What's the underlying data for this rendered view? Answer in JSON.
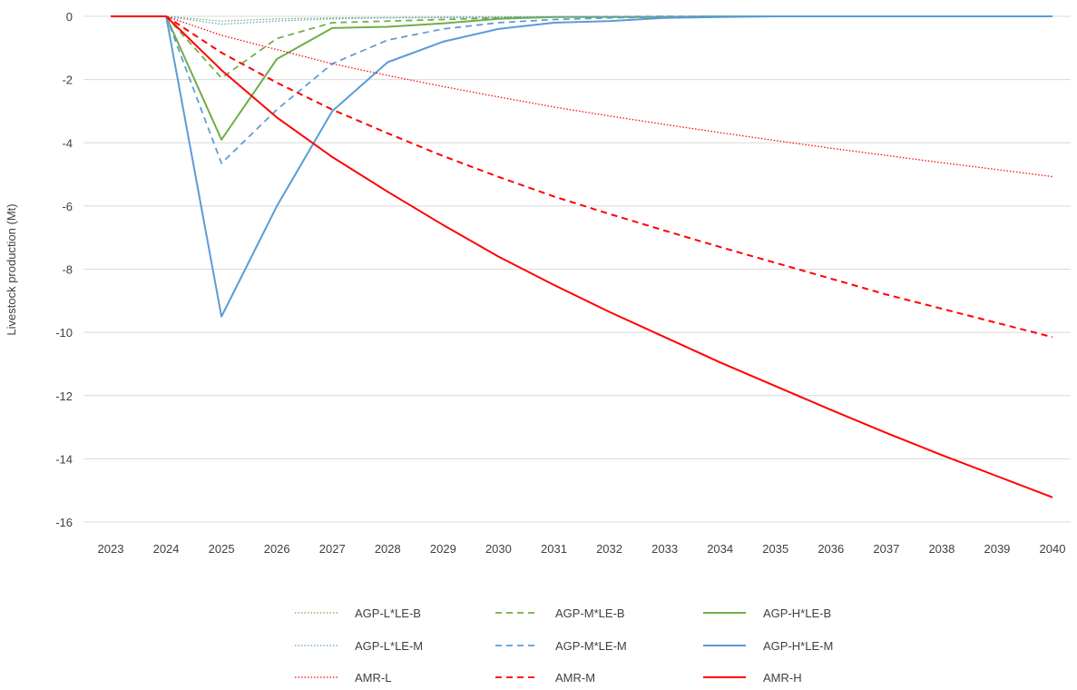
{
  "chart_data": {
    "type": "line",
    "title": "",
    "xlabel": "",
    "ylabel": "Livestock production (Mt)",
    "ylim": [
      -16,
      0
    ],
    "yticks": [
      0,
      -2,
      -4,
      -6,
      -8,
      -10,
      -12,
      -14,
      -16
    ],
    "x": [
      "2023",
      "2024",
      "2025",
      "2026",
      "2027",
      "2028",
      "2029",
      "2030",
      "2031",
      "2032",
      "2033",
      "2034",
      "2035",
      "2036",
      "2037",
      "2038",
      "2039",
      "2040"
    ],
    "grid": "horizontal",
    "legend_position": "bottom",
    "series": [
      {
        "name": "AGP-L*LE-B",
        "color": "#70AD47",
        "dash": "dotted",
        "values": [
          0,
          0,
          -0.15,
          -0.08,
          -0.05,
          -0.04,
          -0.03,
          -0.02,
          -0.01,
          -0.01,
          0,
          0,
          0,
          0,
          0,
          0,
          0,
          0
        ]
      },
      {
        "name": "AGP-M*LE-B",
        "color": "#70AD47",
        "dash": "dashed",
        "values": [
          0,
          0,
          -1.95,
          -0.7,
          -0.2,
          -0.15,
          -0.1,
          -0.05,
          -0.02,
          -0.01,
          0,
          0,
          0,
          0,
          0,
          0,
          0,
          0
        ]
      },
      {
        "name": "AGP-H*LE-B",
        "color": "#70AD47",
        "dash": "solid",
        "values": [
          0,
          0,
          -3.9,
          -1.35,
          -0.37,
          -0.33,
          -0.22,
          -0.08,
          -0.02,
          -0.02,
          -0.02,
          0,
          0,
          0,
          0,
          0,
          0,
          0
        ]
      },
      {
        "name": "AGP-L*LE-M",
        "color": "#5B9BD5",
        "dash": "dotted",
        "values": [
          0,
          0,
          -0.25,
          -0.15,
          -0.08,
          -0.05,
          -0.04,
          -0.03,
          -0.02,
          -0.01,
          0,
          0,
          0,
          0,
          0,
          0,
          0,
          0
        ]
      },
      {
        "name": "AGP-M*LE-M",
        "color": "#5B9BD5",
        "dash": "dashed",
        "values": [
          0,
          0,
          -4.65,
          -2.95,
          -1.5,
          -0.75,
          -0.4,
          -0.2,
          -0.1,
          -0.05,
          -0.02,
          0,
          0,
          0,
          0,
          0,
          0,
          0
        ]
      },
      {
        "name": "AGP-H*LE-M",
        "color": "#5B9BD5",
        "dash": "solid",
        "values": [
          0,
          0,
          -9.5,
          -6.0,
          -3.0,
          -1.45,
          -0.8,
          -0.4,
          -0.2,
          -0.15,
          -0.05,
          -0.02,
          0,
          0,
          0,
          0,
          0,
          0
        ]
      },
      {
        "name": "AMR-L",
        "color": "#FF0000",
        "dash": "dotted",
        "values": [
          0,
          0,
          -0.6,
          -1.05,
          -1.5,
          -1.87,
          -2.22,
          -2.55,
          -2.87,
          -3.15,
          -3.42,
          -3.68,
          -3.93,
          -4.17,
          -4.4,
          -4.63,
          -4.85,
          -5.07
        ]
      },
      {
        "name": "AMR-M",
        "color": "#FF0000",
        "dash": "dashed",
        "values": [
          0,
          0,
          -1.15,
          -2.1,
          -2.95,
          -3.7,
          -4.42,
          -5.08,
          -5.7,
          -6.25,
          -6.78,
          -7.3,
          -7.8,
          -8.3,
          -8.8,
          -9.25,
          -9.7,
          -10.15
        ]
      },
      {
        "name": "AMR-H",
        "color": "#FF0000",
        "dash": "solid",
        "values": [
          0,
          0,
          -1.7,
          -3.2,
          -4.45,
          -5.55,
          -6.6,
          -7.6,
          -8.5,
          -9.35,
          -10.15,
          -10.95,
          -11.7,
          -12.45,
          -13.18,
          -13.88,
          -14.55,
          -15.22
        ]
      }
    ],
    "legend_order": [
      "AGP-L*LE-B",
      "AGP-M*LE-B",
      "AGP-H*LE-B",
      "AGP-L*LE-M",
      "AGP-M*LE-M",
      "AGP-H*LE-M",
      "AMR-L",
      "AMR-M",
      "AMR-H"
    ]
  }
}
